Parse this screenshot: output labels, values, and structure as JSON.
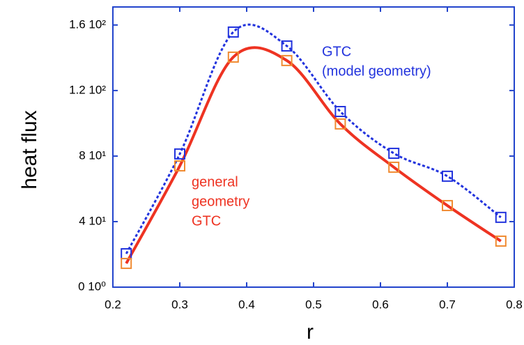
{
  "chart_data": {
    "type": "line",
    "xlabel": "r",
    "ylabel": "heat  flux",
    "x": [
      0.22,
      0.3,
      0.38,
      0.46,
      0.54,
      0.62,
      0.7,
      0.78
    ],
    "series": [
      {
        "color": "#2233dd",
        "dash": true,
        "values": [
          20.4,
          81.3,
          155.7,
          147.2,
          107.2,
          81.7,
          67.7,
          42.6
        ]
      },
      {
        "color": "#ee3322",
        "marker_color": "#f08a30",
        "dash": false,
        "values": [
          14.5,
          74.0,
          140.4,
          138.3,
          99.6,
          73.2,
          49.8,
          28.1
        ]
      }
    ],
    "annotations": [
      {
        "color": "#2233dd",
        "lines": [
          "GTC",
          "(model geometry)"
        ]
      },
      {
        "color": "#ee3322",
        "lines": [
          "general",
          "geometry",
          "GTC"
        ]
      }
    ],
    "xlim": [
      0.2,
      0.8
    ],
    "xticks": [
      0.2,
      0.3,
      0.4,
      0.5,
      0.6,
      0.7,
      0.8
    ],
    "ylim": [
      0,
      171
    ],
    "yticks": [
      {
        "value": 0,
        "label": "0 10⁰"
      },
      {
        "value": 40,
        "label": "4 10¹"
      },
      {
        "value": 80,
        "label": "8 10¹"
      },
      {
        "value": 120,
        "label": "1.2 10²"
      },
      {
        "value": 160,
        "label": "1.6 10²"
      }
    ]
  }
}
